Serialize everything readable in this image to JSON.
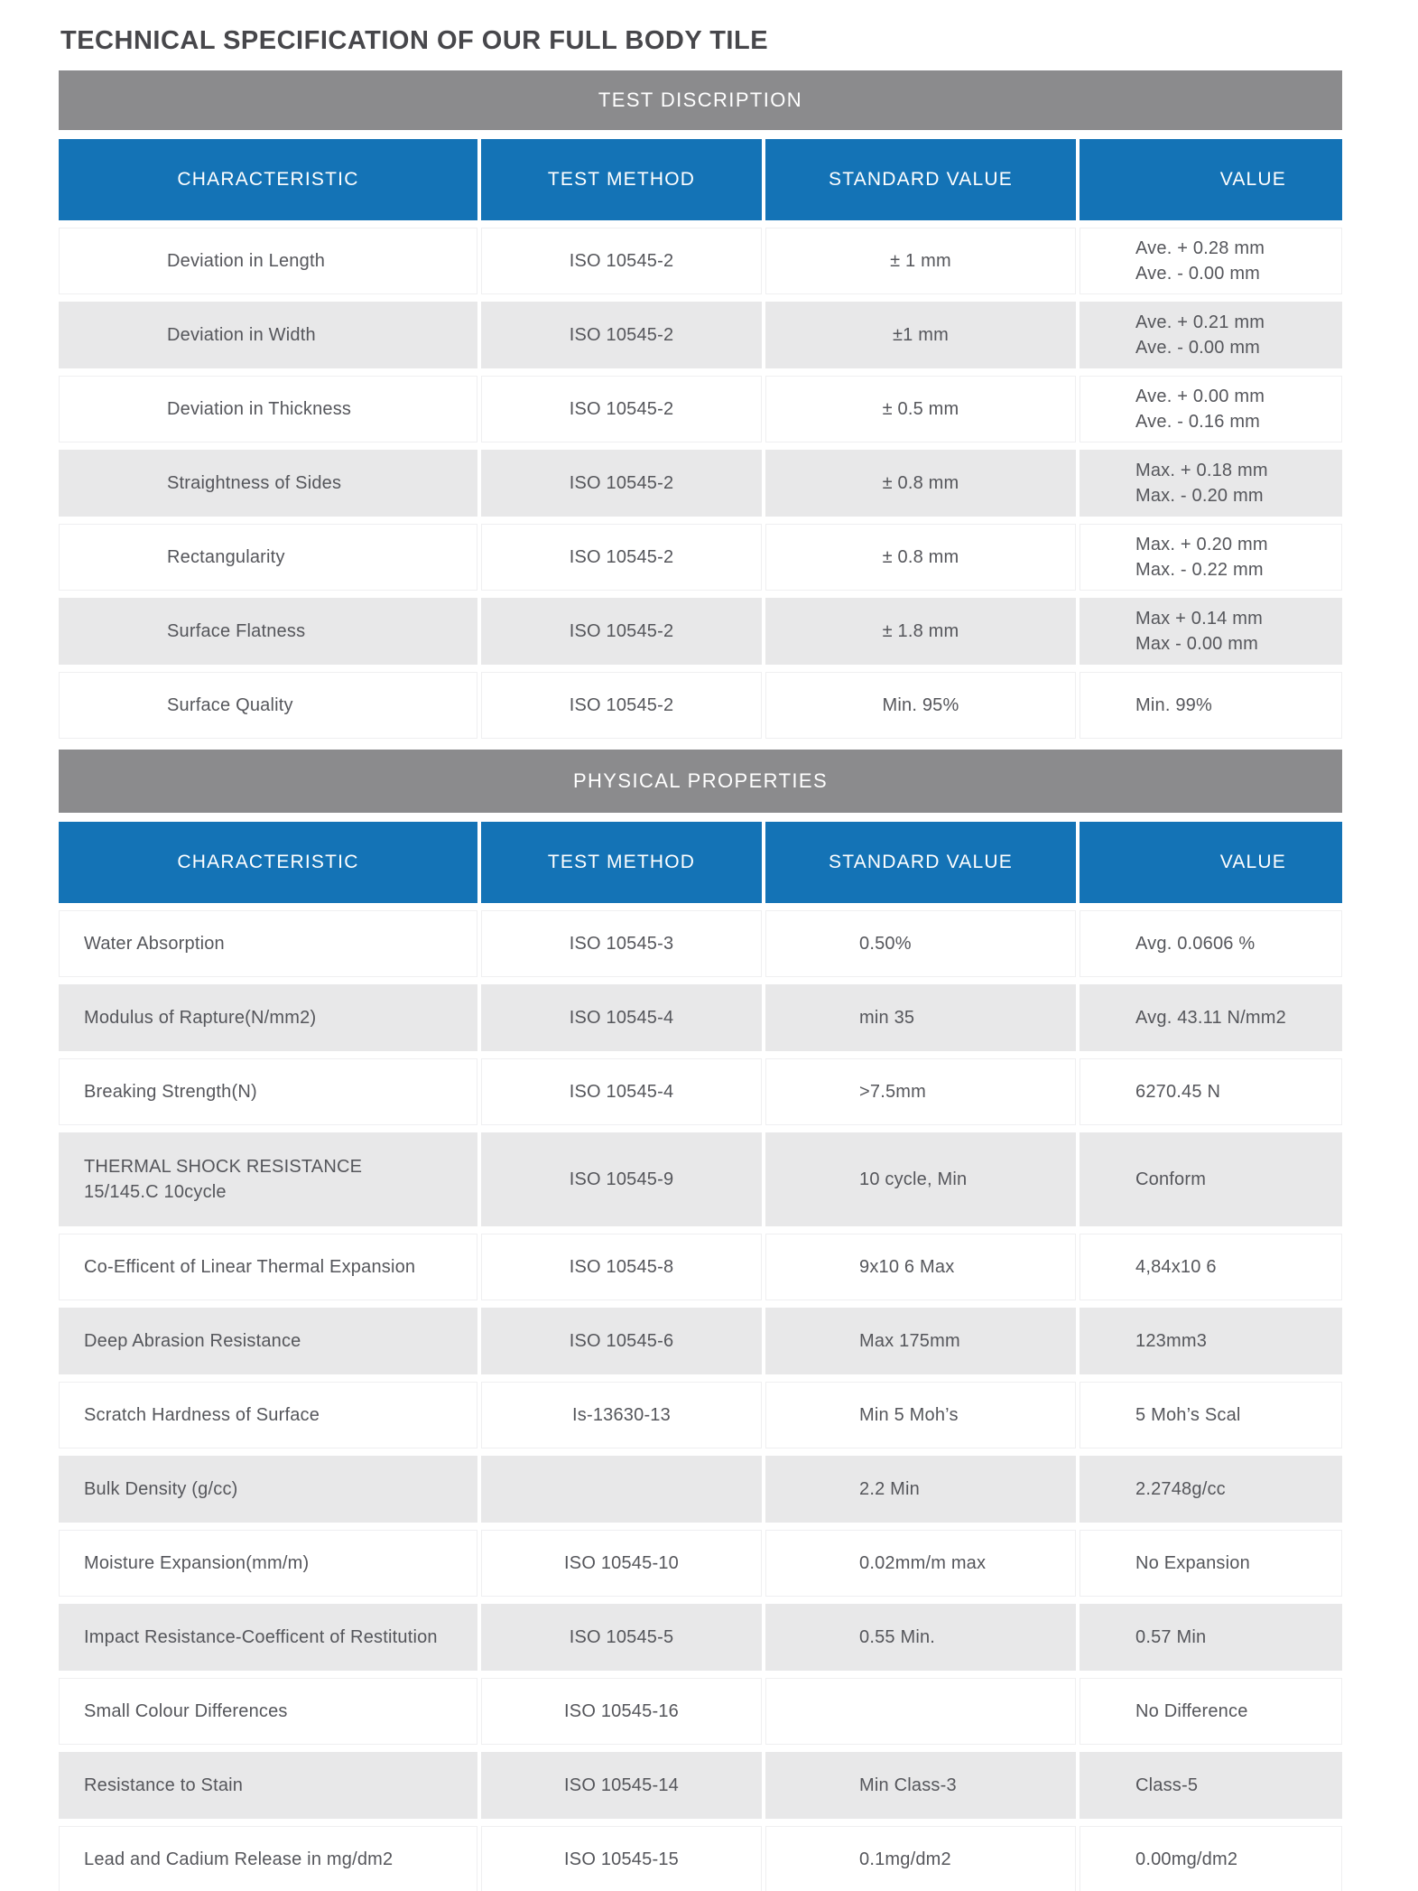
{
  "page_title": "TECHNICAL SPECIFICATION OF OUR FULL BODY TILE",
  "colors": {
    "header_blue": "#1473b6",
    "band_gray": "#8b8b8d",
    "alt_row_gray": "#e8e8e9",
    "body_text": "#55565b",
    "title_text": "#47474b",
    "header_text": "#ffffff"
  },
  "columns": [
    "CHARACTERISTIC",
    "TEST METHOD",
    "STANDARD VALUE",
    "VALUE"
  ],
  "sections": [
    {
      "band_title": "TEST DISCRIPTION",
      "rows": [
        [
          "Deviation in Length",
          "ISO 10545-2",
          "± 1 mm",
          "Ave. + 0.28 mm\nAve. - 0.00 mm"
        ],
        [
          "Deviation in Width",
          "ISO 10545-2",
          "±1 mm",
          "Ave. + 0.21 mm\nAve. - 0.00 mm"
        ],
        [
          "Deviation in Thickness",
          "ISO 10545-2",
          "± 0.5 mm",
          "Ave. + 0.00 mm\nAve. - 0.16 mm"
        ],
        [
          "Straightness of Sides",
          "ISO 10545-2",
          "± 0.8 mm",
          "Max. + 0.18 mm\nMax. - 0.20 mm"
        ],
        [
          "Rectangularity",
          "ISO 10545-2",
          "± 0.8 mm",
          "Max. + 0.20 mm\nMax. - 0.22 mm"
        ],
        [
          "Surface Flatness",
          "ISO 10545-2",
          "± 1.8 mm",
          "Max + 0.14 mm\nMax - 0.00 mm"
        ],
        [
          "Surface Quality",
          "ISO 10545-2",
          "Min. 95%",
          "Min. 99%"
        ]
      ]
    },
    {
      "band_title": "PHYSICAL PROPERTIES",
      "rows": [
        [
          "Water Absorption",
          "ISO 10545-3",
          "0.50%",
          "Avg. 0.0606 %"
        ],
        [
          "Modulus of Rapture(N/mm2)",
          "ISO 10545-4",
          "min 35",
          "Avg. 43.11 N/mm2"
        ],
        [
          "Breaking Strength(N)",
          "ISO 10545-4",
          ">7.5mm",
          "6270.45 N"
        ],
        [
          "THERMAL SHOCK RESISTANCE\n15/145.C 10cycle",
          "ISO 10545-9",
          "10 cycle, Min",
          "Conform"
        ],
        [
          "Co-Efficent of Linear Thermal Expansion",
          "ISO 10545-8",
          "9x10 6 Max",
          "4,84x10 6"
        ],
        [
          "Deep Abrasion Resistance",
          "ISO 10545-6",
          "Max 175mm",
          "123mm3"
        ],
        [
          "Scratch Hardness of Surface",
          "Is-13630-13",
          "Min 5 Moh’s",
          "5 Moh’s Scal"
        ],
        [
          "Bulk Density (g/cc)",
          "",
          "2.2 Min",
          "2.2748g/cc"
        ],
        [
          "Moisture Expansion(mm/m)",
          "ISO 10545-10",
          "0.02mm/m max",
          "No Expansion"
        ],
        [
          "Impact Resistance-Coefficent of Restitution",
          "ISO 10545-5",
          "0.55 Min.",
          "0.57 Min"
        ],
        [
          "Small Colour Differences",
          "ISO 10545-16",
          "",
          "No Difference"
        ],
        [
          "Resistance to Stain",
          "ISO 10545-14",
          "Min Class-3",
          "Class-5"
        ],
        [
          "Lead and Cadium Release in mg/dm2",
          "ISO 10545-15",
          "0.1mg/dm2",
          "0.00mg/dm2"
        ]
      ]
    }
  ]
}
